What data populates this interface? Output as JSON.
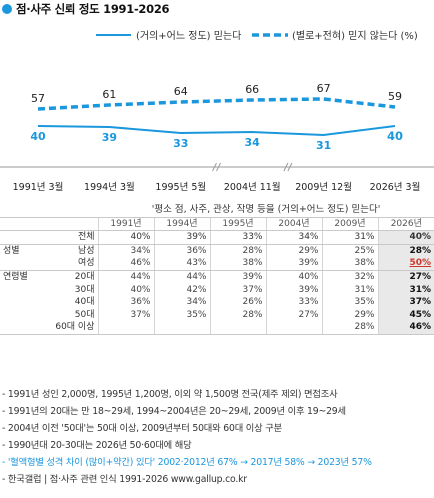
{
  "title": "점·사주 신뢰 정도 1991-2026",
  "colors": {
    "accent": "#1a97dd",
    "highlight_bg": "#e9e9e9",
    "red": "#d0362a"
  },
  "chart_data": {
    "type": "line",
    "categories": [
      "1991년 3월",
      "1994년 3월",
      "1995년 5월",
      "2004년 11월",
      "2009년 12월",
      "2026년 3월"
    ],
    "series": [
      {
        "name": "(거의+어느 정도) 믿는다",
        "values": [
          40,
          39,
          33,
          34,
          31,
          40
        ],
        "style": "solid"
      },
      {
        "name": "(별로+전혀) 믿지 않는다 (%)",
        "values": [
          57,
          61,
          64,
          66,
          67,
          59
        ],
        "style": "dashed"
      }
    ],
    "legend_position": "top-right",
    "axis_breaks_after_index": [
      2,
      3
    ]
  },
  "table": {
    "caption": "'평소 점, 사주, 관상, 작명 등을 (거의+어느 정도) 믿는다'",
    "years": [
      "1991년",
      "1994년",
      "1995년",
      "2004년",
      "2009년",
      "2026년"
    ],
    "total": {
      "label": "전체",
      "values": [
        "40%",
        "39%",
        "33%",
        "34%",
        "31%",
        "40%"
      ]
    },
    "sex": {
      "group": "성별",
      "rows": [
        {
          "label": "남성",
          "values": [
            "34%",
            "36%",
            "28%",
            "29%",
            "25%",
            "28%"
          ]
        },
        {
          "label": "여성",
          "values": [
            "46%",
            "43%",
            "38%",
            "39%",
            "38%",
            "50%"
          ]
        }
      ]
    },
    "age": {
      "group": "연령별",
      "rows": [
        {
          "label": "20대",
          "values": [
            "44%",
            "44%",
            "39%",
            "40%",
            "32%",
            "27%"
          ]
        },
        {
          "label": "30대",
          "values": [
            "40%",
            "42%",
            "37%",
            "39%",
            "31%",
            "31%"
          ]
        },
        {
          "label": "40대",
          "values": [
            "36%",
            "34%",
            "26%",
            "33%",
            "35%",
            "37%"
          ]
        },
        {
          "label": "50대",
          "values": [
            "37%",
            "35%",
            "28%",
            "27%",
            "29%",
            "45%"
          ]
        },
        {
          "label": "60대 이상",
          "values": [
            "",
            "",
            "",
            "",
            "28%",
            "46%"
          ]
        }
      ]
    }
  },
  "notes": [
    "- 1991년 성인 2,000명, 1995년 1,200명, 이외 약 1,500명 전국(제주 제외) 면접조사",
    "- 1991년의 20대는 만 18~29세, 1994~2004년은 20~29세, 2009년 이후 19~29세",
    "- 2004년 이전 '50대'는 50대 이상, 2009년부터 50대와 60대 이상 구분",
    "- 1990년대 20-30대는 2026년 50·60대에 해당",
    "- '혈액형별 성격 차이 (많이+약간) 있다' 2002·2012년 67% → 2017년 58% → 2023년 57%",
    "- 한국갤럽 | 점·사주 관련 인식 1991-2026 www.gallup.co.kr"
  ]
}
